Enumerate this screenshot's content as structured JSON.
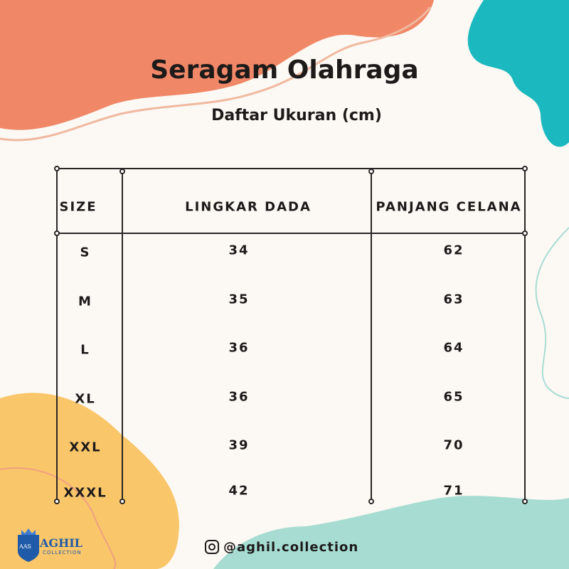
{
  "header": {
    "title": "Seragam Olahraga",
    "subtitle": "Daftar Ukuran (cm)"
  },
  "table": {
    "columns": [
      "SIZE",
      "LINGKAR DADA",
      "PANJANG CELANA"
    ],
    "rows": [
      [
        "S",
        34,
        62
      ],
      [
        "M",
        35,
        63
      ],
      [
        "L",
        36,
        64
      ],
      [
        "XL",
        36,
        65
      ],
      [
        "XXL",
        39,
        70
      ],
      [
        "XXXL",
        42,
        71
      ]
    ]
  },
  "footer": {
    "instagram": "@aghil.collection",
    "logo": {
      "badge": "AAS",
      "name": "AGHIL",
      "tagline": "COLLECTION"
    }
  }
}
